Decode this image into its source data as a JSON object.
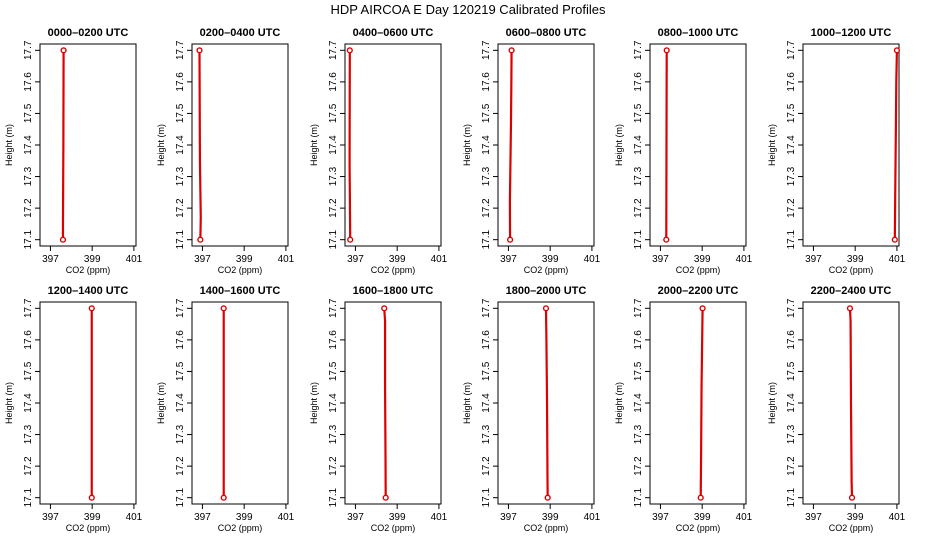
{
  "title": "HDP AIRCOA E  Day 120219  Calibrated Profiles",
  "colors": {
    "profile": "#dd0000",
    "axis": "#000000"
  },
  "chart_data": {
    "type": "line",
    "xlabel": "CO2 (ppm)",
    "ylabel": "Height (m)",
    "xlim": [
      396.5,
      401.1
    ],
    "ylim": [
      17.08,
      17.72
    ],
    "xticks": [
      397,
      399,
      401
    ],
    "xtick_labels": [
      "397",
      "399",
      "401"
    ],
    "yticks": [
      17.1,
      17.2,
      17.3,
      17.4,
      17.5,
      17.6,
      17.7
    ],
    "ytick_labels": [
      "17.1",
      "17.2",
      "17.3",
      "17.4",
      "17.5",
      "17.6",
      "17.7"
    ],
    "panels": [
      {
        "title": "0000–0200 UTC",
        "points": [
          [
            397.6,
            17.1
          ],
          [
            397.6,
            17.15
          ],
          [
            397.62,
            17.4
          ],
          [
            397.63,
            17.68
          ],
          [
            397.63,
            17.7
          ]
        ]
      },
      {
        "title": "0200–0400 UTC",
        "points": [
          [
            396.9,
            17.1
          ],
          [
            396.92,
            17.17
          ],
          [
            396.88,
            17.35
          ],
          [
            396.86,
            17.68
          ],
          [
            396.86,
            17.7
          ]
        ]
      },
      {
        "title": "0400–0600 UTC",
        "points": [
          [
            396.75,
            17.1
          ],
          [
            396.72,
            17.34
          ],
          [
            396.73,
            17.68
          ],
          [
            396.73,
            17.7
          ]
        ]
      },
      {
        "title": "0600–0800 UTC",
        "points": [
          [
            397.08,
            17.1
          ],
          [
            397.07,
            17.22
          ],
          [
            397.12,
            17.46
          ],
          [
            397.14,
            17.6
          ],
          [
            397.15,
            17.7
          ]
        ]
      },
      {
        "title": "0800–1000 UTC",
        "points": [
          [
            397.28,
            17.1
          ],
          [
            397.29,
            17.4
          ],
          [
            397.3,
            17.68
          ],
          [
            397.3,
            17.7
          ]
        ]
      },
      {
        "title": "1000–1200 UTC",
        "points": [
          [
            400.9,
            17.1
          ],
          [
            400.92,
            17.25
          ],
          [
            400.95,
            17.45
          ],
          [
            400.97,
            17.6
          ],
          [
            401.0,
            17.7
          ]
        ]
      },
      {
        "title": "1200–1400 UTC",
        "points": [
          [
            398.98,
            17.1
          ],
          [
            398.98,
            17.4
          ],
          [
            398.98,
            17.7
          ]
        ]
      },
      {
        "title": "1400–1600 UTC",
        "points": [
          [
            398.02,
            17.1
          ],
          [
            398.02,
            17.4
          ],
          [
            398.02,
            17.7
          ]
        ]
      },
      {
        "title": "1600–1800 UTC",
        "points": [
          [
            398.45,
            17.1
          ],
          [
            398.44,
            17.24
          ],
          [
            398.42,
            17.45
          ],
          [
            398.42,
            17.66
          ],
          [
            398.38,
            17.7
          ]
        ]
      },
      {
        "title": "1800–2000 UTC",
        "points": [
          [
            398.88,
            17.1
          ],
          [
            398.87,
            17.18
          ],
          [
            398.85,
            17.4
          ],
          [
            398.82,
            17.6
          ],
          [
            398.8,
            17.7
          ]
        ]
      },
      {
        "title": "2000–2200 UTC",
        "points": [
          [
            398.93,
            17.1
          ],
          [
            398.95,
            17.25
          ],
          [
            398.97,
            17.45
          ],
          [
            399.0,
            17.6
          ],
          [
            399.02,
            17.7
          ]
        ]
      },
      {
        "title": "2200–2400 UTC",
        "points": [
          [
            398.85,
            17.1
          ],
          [
            398.83,
            17.15
          ],
          [
            398.8,
            17.4
          ],
          [
            398.78,
            17.66
          ],
          [
            398.75,
            17.7
          ]
        ]
      }
    ]
  }
}
